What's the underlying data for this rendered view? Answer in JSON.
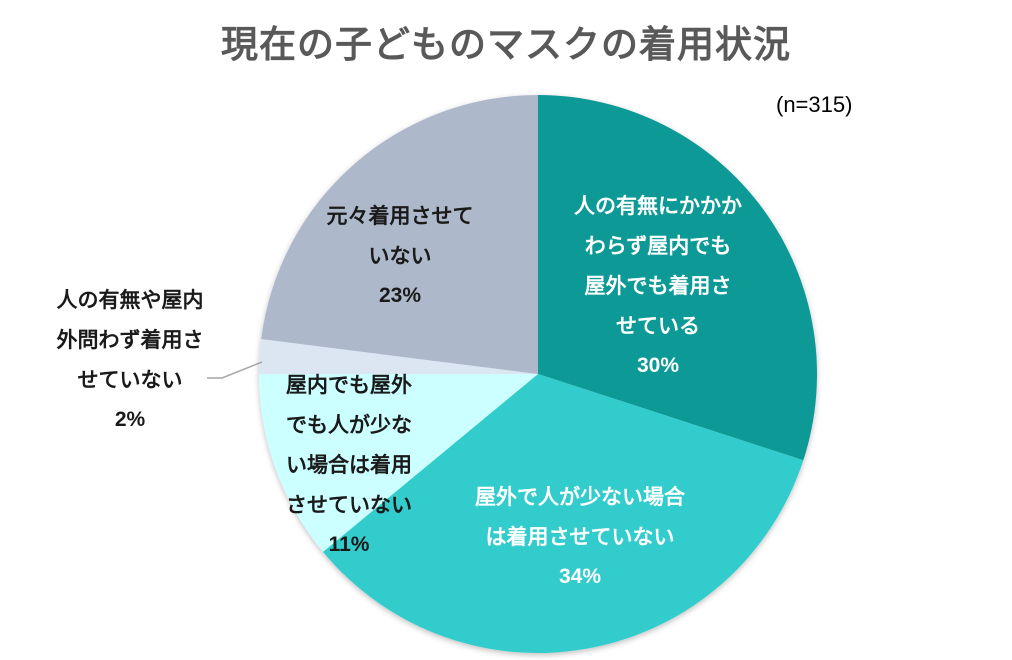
{
  "chart_data": {
    "type": "pie",
    "title": "現在の子どものマスクの着用状況",
    "subtitle": "(n=315)",
    "start_angle": "12 o'clock, clockwise",
    "categories": [
      "人の有無にかかわらず屋内でも屋外でも着用させている",
      "屋外で人が少ない場合は着用させていない",
      "屋内でも屋外でも人が少ない場合は着用させていない",
      "人の有無や屋内外問わず着用させていない",
      "元々着用させていない"
    ],
    "values": [
      30,
      34,
      11,
      2,
      23
    ],
    "unit": "%",
    "colors": [
      "#0E9A96",
      "#33CCCC",
      "#CCFFFF",
      "#DCE6F2",
      "#ADB9CA"
    ],
    "legend": "none (data labels on slices)"
  },
  "title": "現在の子どものマスクの着用状況",
  "sample_size": "(n=315)",
  "labels": {
    "s1": {
      "lines": [
        "人の有無にかかか",
        "わらず屋内でも",
        "屋外でも着用さ",
        "せている"
      ],
      "pct": "30%"
    },
    "s2": {
      "lines": [
        "屋外で人が少ない場合",
        "は着用させていない"
      ],
      "pct": "34%"
    },
    "s3": {
      "lines": [
        "屋内でも屋外",
        "でも人が少な",
        "い場合は着用",
        "させていない"
      ],
      "pct": "11%"
    },
    "s4": {
      "lines": [
        "人の有無や屋内",
        "外問わず着用さ",
        "せていない"
      ],
      "pct": "2%"
    },
    "s5": {
      "lines": [
        "元々着用させて",
        "いない"
      ],
      "pct": "23%"
    }
  }
}
